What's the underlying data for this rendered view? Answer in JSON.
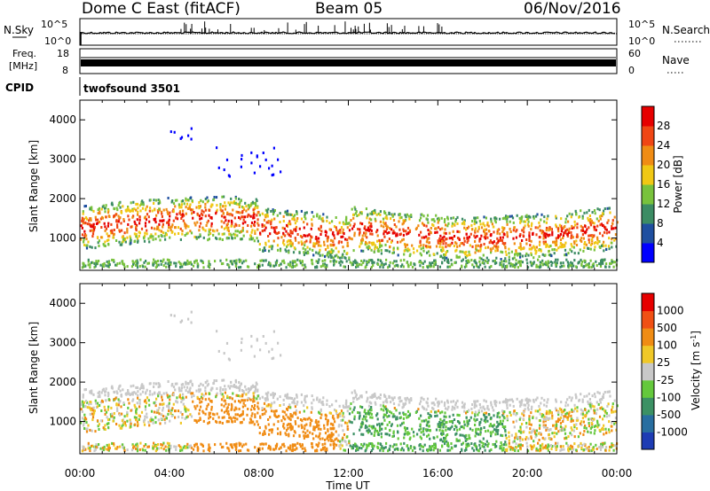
{
  "header": {
    "title": "Dome C East (fitACF)",
    "beam": "Beam 05",
    "date": "06/Nov/2016"
  },
  "nsky_panel": {
    "left_label": "N.Sky",
    "right_label": "N.Search",
    "tick_top": "10^5",
    "tick_bottom": "10^0",
    "right_ticks": [
      "10^5",
      "10^0"
    ]
  },
  "freq_panel": {
    "left_label_line1": "Freq.",
    "left_label_line2": "[MHz]",
    "left_ticks": [
      "18",
      "8"
    ],
    "right_ticks": [
      "60",
      "0"
    ],
    "right_label": "Nave"
  },
  "cpid": {
    "label": "CPID",
    "value": "twofsound 3501"
  },
  "time_axis": {
    "label": "Time UT",
    "ticks": [
      "00:00",
      "04:00",
      "08:00",
      "12:00",
      "16:00",
      "20:00",
      "00:00"
    ]
  },
  "power_colorbar": {
    "label": "Power [dB]",
    "ticks": [
      "4",
      "8",
      "12",
      "16",
      "20",
      "24",
      "28"
    ],
    "colors": [
      "#0000ff",
      "#1f4fa0",
      "#3c8c64",
      "#78c23c",
      "#f0c814",
      "#f08c14",
      "#f04614",
      "#e60000"
    ]
  },
  "velocity_colorbar": {
    "label": "Velocity [m s^-1]",
    "ticks": [
      "1000",
      "500",
      "100",
      "25",
      "-25",
      "-100",
      "-500",
      "-1000"
    ],
    "colors": [
      "#1e3cb4",
      "#286ea0",
      "#3c9164",
      "#64c83c",
      "#c8c8c8",
      "#f0c828",
      "#f08c14",
      "#f05014",
      "#e60000"
    ]
  },
  "chart_data": [
    {
      "type": "heatmap",
      "title": "",
      "xlabel": "Time UT",
      "ylabel": "Slant Range [km]",
      "xlim": [
        "00:00",
        "24:00"
      ],
      "ylim": [
        180,
        4500
      ],
      "y_ticks": [
        1000,
        2000,
        3000,
        4000
      ],
      "colorbar": "Power [dB]",
      "clim": [
        0,
        32
      ]
    },
    {
      "type": "heatmap",
      "title": "",
      "xlabel": "Time UT",
      "ylabel": "Slant Range [km]",
      "xlim": [
        "00:00",
        "24:00"
      ],
      "ylim": [
        180,
        4500
      ],
      "y_ticks": [
        1000,
        2000,
        3000,
        4000
      ],
      "colorbar": "Velocity [m s^-1]"
    }
  ]
}
